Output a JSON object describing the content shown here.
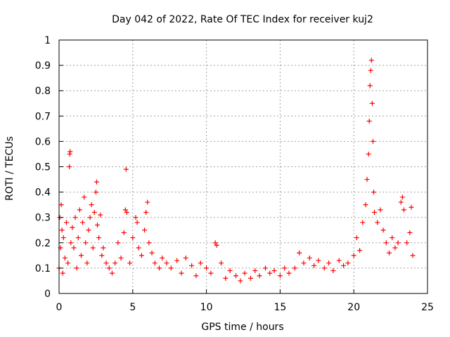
{
  "chart_data": {
    "type": "scatter",
    "title": "Day 042 of 2022, Rate Of TEC Index for receiver kuj2",
    "xlabel": "GPS time / hours",
    "ylabel": "ROTI / TECUs",
    "xlim": [
      0,
      25
    ],
    "ylim": [
      0,
      1
    ],
    "xticks": [
      "0",
      "5",
      "10",
      "15",
      "20",
      "25"
    ],
    "yticks": [
      "0",
      "0.1",
      "0.2",
      "0.3",
      "0.4",
      "0.5",
      "0.6",
      "0.7",
      "0.8",
      "0.9",
      "1"
    ],
    "grid": true,
    "marker": "plus",
    "series": [
      {
        "color": "#ff0000",
        "points": [
          [
            0.0,
            0.1
          ],
          [
            0.05,
            0.3
          ],
          [
            0.1,
            0.18
          ],
          [
            0.15,
            0.35
          ],
          [
            0.2,
            0.25
          ],
          [
            0.25,
            0.08
          ],
          [
            0.3,
            0.22
          ],
          [
            0.4,
            0.14
          ],
          [
            0.5,
            0.28
          ],
          [
            0.6,
            0.12
          ],
          [
            0.7,
            0.5
          ],
          [
            0.72,
            0.55
          ],
          [
            0.75,
            0.56
          ],
          [
            0.8,
            0.2
          ],
          [
            0.9,
            0.26
          ],
          [
            1.0,
            0.18
          ],
          [
            1.1,
            0.3
          ],
          [
            1.2,
            0.1
          ],
          [
            1.3,
            0.22
          ],
          [
            1.4,
            0.33
          ],
          [
            1.5,
            0.15
          ],
          [
            1.6,
            0.28
          ],
          [
            1.7,
            0.38
          ],
          [
            1.8,
            0.2
          ],
          [
            1.9,
            0.12
          ],
          [
            2.0,
            0.25
          ],
          [
            2.1,
            0.3
          ],
          [
            2.2,
            0.35
          ],
          [
            2.3,
            0.18
          ],
          [
            2.4,
            0.32
          ],
          [
            2.5,
            0.4
          ],
          [
            2.55,
            0.44
          ],
          [
            2.6,
            0.27
          ],
          [
            2.7,
            0.22
          ],
          [
            2.8,
            0.31
          ],
          [
            2.9,
            0.15
          ],
          [
            3.0,
            0.18
          ],
          [
            3.2,
            0.12
          ],
          [
            3.4,
            0.1
          ],
          [
            3.6,
            0.08
          ],
          [
            3.8,
            0.12
          ],
          [
            4.0,
            0.2
          ],
          [
            4.2,
            0.14
          ],
          [
            4.4,
            0.24
          ],
          [
            4.5,
            0.33
          ],
          [
            4.55,
            0.49
          ],
          [
            4.6,
            0.32
          ],
          [
            4.8,
            0.12
          ],
          [
            5.0,
            0.22
          ],
          [
            5.2,
            0.3
          ],
          [
            5.3,
            0.28
          ],
          [
            5.4,
            0.18
          ],
          [
            5.6,
            0.15
          ],
          [
            5.8,
            0.25
          ],
          [
            5.9,
            0.32
          ],
          [
            6.0,
            0.36
          ],
          [
            6.1,
            0.2
          ],
          [
            6.3,
            0.16
          ],
          [
            6.5,
            0.12
          ],
          [
            6.8,
            0.1
          ],
          [
            7.0,
            0.14
          ],
          [
            7.3,
            0.12
          ],
          [
            7.6,
            0.1
          ],
          [
            8.0,
            0.13
          ],
          [
            8.3,
            0.08
          ],
          [
            8.6,
            0.14
          ],
          [
            9.0,
            0.11
          ],
          [
            9.3,
            0.07
          ],
          [
            9.6,
            0.12
          ],
          [
            10.0,
            0.1
          ],
          [
            10.3,
            0.08
          ],
          [
            10.6,
            0.2
          ],
          [
            10.7,
            0.19
          ],
          [
            11.0,
            0.12
          ],
          [
            11.3,
            0.06
          ],
          [
            11.6,
            0.09
          ],
          [
            12.0,
            0.07
          ],
          [
            12.3,
            0.05
          ],
          [
            12.6,
            0.08
          ],
          [
            13.0,
            0.06
          ],
          [
            13.3,
            0.09
          ],
          [
            13.6,
            0.07
          ],
          [
            14.0,
            0.1
          ],
          [
            14.3,
            0.08
          ],
          [
            14.6,
            0.09
          ],
          [
            15.0,
            0.07
          ],
          [
            15.3,
            0.1
          ],
          [
            15.6,
            0.08
          ],
          [
            16.0,
            0.1
          ],
          [
            16.3,
            0.16
          ],
          [
            16.6,
            0.12
          ],
          [
            17.0,
            0.14
          ],
          [
            17.3,
            0.11
          ],
          [
            17.6,
            0.13
          ],
          [
            18.0,
            0.1
          ],
          [
            18.3,
            0.12
          ],
          [
            18.6,
            0.09
          ],
          [
            19.0,
            0.13
          ],
          [
            19.3,
            0.11
          ],
          [
            19.6,
            0.12
          ],
          [
            20.0,
            0.15
          ],
          [
            20.2,
            0.22
          ],
          [
            20.4,
            0.17
          ],
          [
            20.6,
            0.28
          ],
          [
            20.8,
            0.35
          ],
          [
            20.9,
            0.45
          ],
          [
            21.0,
            0.55
          ],
          [
            21.05,
            0.68
          ],
          [
            21.1,
            0.82
          ],
          [
            21.15,
            0.88
          ],
          [
            21.2,
            0.92
          ],
          [
            21.25,
            0.75
          ],
          [
            21.3,
            0.6
          ],
          [
            21.35,
            0.4
          ],
          [
            21.4,
            0.32
          ],
          [
            21.6,
            0.28
          ],
          [
            21.8,
            0.33
          ],
          [
            22.0,
            0.25
          ],
          [
            22.2,
            0.2
          ],
          [
            22.4,
            0.16
          ],
          [
            22.6,
            0.22
          ],
          [
            22.8,
            0.18
          ],
          [
            23.0,
            0.2
          ],
          [
            23.2,
            0.36
          ],
          [
            23.3,
            0.38
          ],
          [
            23.4,
            0.33
          ],
          [
            23.6,
            0.2
          ],
          [
            23.8,
            0.24
          ],
          [
            23.9,
            0.34
          ],
          [
            24.0,
            0.15
          ]
        ]
      }
    ]
  }
}
